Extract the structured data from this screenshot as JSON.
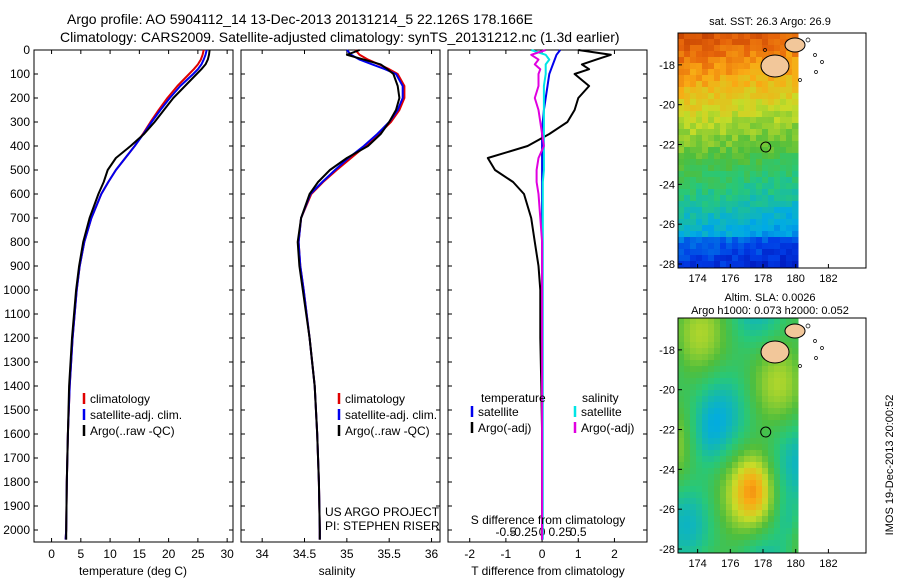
{
  "header": {
    "title_line1": "Argo profile: AO 5904112_14 13-Dec-2013 20131214_5 22.126S 178.166E",
    "title_line2": "Climatology: CARS2009. Satellite-adjusted climatology: synTS_20131212.nc (1.3d earlier)"
  },
  "colors": {
    "climatology": "#e00000",
    "satellite": "#0000ee",
    "argo": "#000000",
    "temp_diff_satellite": "#0000ee",
    "temp_diff_argo": "#000000",
    "sal_diff_satellite": "#00e5e5",
    "sal_diff_argo": "#e000e0"
  },
  "legend": {
    "climatology": "climatology",
    "satellite_adj": "satellite-adj. clim.",
    "argo_raw": "Argo(..raw -QC)"
  },
  "diff_legend": {
    "temperature": "temperature",
    "salinity": "salinity",
    "satellite": "satellite",
    "argo_adj": "Argo(-adj)"
  },
  "credits": {
    "line1": "US ARGO PROJECT",
    "line2": "PI: STEPHEN RISER"
  },
  "maps": {
    "sst_title": "sat. SST: 26.3 Argo: 26.9",
    "sla_title1": "Altim. SLA: 0.0026",
    "sla_title2": "Argo h1000: 0.073 h2000: 0.052",
    "lon_ticks": [
      "174",
      "176",
      "178",
      "180",
      "182"
    ],
    "lat_ticks": [
      "-18",
      "-20",
      "-22",
      "-24",
      "-26",
      "-28"
    ],
    "argo_marker": {
      "lon": 178.166,
      "lat": -22.126
    },
    "lon_range": [
      172.8,
      184.3
    ],
    "lat_range": [
      -28.2,
      -16.4
    ],
    "data_lon_max": 180
  },
  "stamp": "IMOS 19-Dec-2013 20:00:52",
  "chart_data": [
    {
      "type": "line",
      "name": "temperature-profile",
      "xlabel": "temperature (deg C)",
      "ylabel": "",
      "xlim": [
        -3,
        31
      ],
      "ylim": [
        2050,
        0
      ],
      "x_ticks": [
        "0",
        "5",
        "10",
        "15",
        "20",
        "25",
        "30"
      ],
      "y_ticks": [
        "0",
        "100",
        "200",
        "300",
        "400",
        "500",
        "600",
        "700",
        "800",
        "900",
        "1000",
        "1100",
        "1200",
        "1300",
        "1400",
        "1500",
        "1600",
        "1700",
        "1800",
        "1900",
        "2000"
      ],
      "depth": [
        0,
        20,
        40,
        60,
        80,
        100,
        150,
        200,
        250,
        300,
        350,
        400,
        450,
        500,
        550,
        600,
        700,
        800,
        900,
        1000,
        1200,
        1400,
        1600,
        1800,
        2000,
        2040
      ],
      "series": [
        {
          "name": "climatology",
          "values": [
            26.0,
            25.8,
            25.5,
            25.0,
            24.3,
            23.5,
            21.5,
            19.8,
            18.3,
            16.9,
            15.6,
            14.2,
            12.6,
            11.0,
            9.7,
            8.5,
            6.8,
            5.6,
            4.8,
            4.3,
            3.6,
            3.1,
            2.8,
            2.6,
            2.5,
            2.4
          ]
        },
        {
          "name": "satellite-adj. clim.",
          "values": [
            26.5,
            26.3,
            26.0,
            25.6,
            25.0,
            24.2,
            22.0,
            20.2,
            18.6,
            17.1,
            15.7,
            14.2,
            12.6,
            11.0,
            9.7,
            8.5,
            6.8,
            5.6,
            4.8,
            4.3,
            3.6,
            3.1,
            2.8,
            2.6,
            2.5,
            2.4
          ]
        },
        {
          "name": "Argo(..raw -QC)",
          "values": [
            27.0,
            26.9,
            26.7,
            26.3,
            25.6,
            24.8,
            22.8,
            20.8,
            19.2,
            17.6,
            15.8,
            13.5,
            11.0,
            9.6,
            8.9,
            8.0,
            6.5,
            5.4,
            4.7,
            4.2,
            3.5,
            3.0,
            2.8,
            2.6,
            2.5,
            2.5
          ]
        }
      ]
    },
    {
      "type": "line",
      "name": "salinity-profile",
      "xlabel": "salinity",
      "ylabel": "",
      "xlim": [
        33.75,
        36.1
      ],
      "ylim": [
        2050,
        0
      ],
      "x_ticks": [
        "34",
        "34.5",
        "35",
        "35.5",
        "36"
      ],
      "depth": [
        0,
        20,
        40,
        60,
        80,
        100,
        150,
        200,
        250,
        300,
        350,
        400,
        450,
        500,
        550,
        600,
        700,
        800,
        900,
        1000,
        1200,
        1400,
        1600,
        1800,
        2000,
        2040
      ],
      "series": [
        {
          "name": "climatology",
          "values": [
            35.1,
            35.15,
            35.25,
            35.38,
            35.5,
            35.6,
            35.68,
            35.68,
            35.62,
            35.52,
            35.38,
            35.22,
            35.05,
            34.88,
            34.72,
            34.58,
            34.46,
            34.43,
            34.45,
            34.49,
            34.56,
            34.62,
            34.65,
            34.67,
            34.68,
            34.68
          ]
        },
        {
          "name": "satellite-adj. clim.",
          "values": [
            35.0,
            35.05,
            35.15,
            35.3,
            35.45,
            35.58,
            35.66,
            35.66,
            35.6,
            35.5,
            35.36,
            35.2,
            35.02,
            34.86,
            34.71,
            34.57,
            34.46,
            34.43,
            34.45,
            34.49,
            34.56,
            34.62,
            34.65,
            34.67,
            34.68,
            34.68
          ]
        },
        {
          "name": "Argo(..raw -QC)",
          "values": [
            35.15,
            35.0,
            35.2,
            35.4,
            35.48,
            35.55,
            35.6,
            35.62,
            35.58,
            35.5,
            35.4,
            35.25,
            35.0,
            34.8,
            34.66,
            34.56,
            34.46,
            34.42,
            34.44,
            34.48,
            34.56,
            34.62,
            34.65,
            34.67,
            34.68,
            34.68
          ]
        }
      ]
    },
    {
      "type": "line",
      "name": "difference-from-climatology",
      "xlabel": "T difference from climatology",
      "xlabel_top": "S difference from climatology",
      "xlim": [
        -2.6,
        2.9
      ],
      "ylim": [
        2050,
        0
      ],
      "x_ticks": [
        "-2",
        "-1",
        "0",
        "1",
        "2"
      ],
      "x_ticks_top": [
        {
          "label": "-0.5",
          "t": -1.0
        },
        {
          "label": "-0.25",
          "t": -0.5
        },
        {
          "label": "0",
          "t": 0
        },
        {
          "label": "0.25",
          "t": 0.5
        },
        {
          "label": "0.5",
          "t": 1.0
        }
      ],
      "depth": [
        0,
        20,
        40,
        60,
        80,
        100,
        150,
        200,
        250,
        300,
        350,
        400,
        450,
        500,
        550,
        600,
        700,
        800,
        900,
        1000,
        1200,
        1400,
        1600,
        1800,
        2000,
        2040
      ],
      "series": [
        {
          "name": "temperature satellite",
          "values": [
            0.5,
            0.4,
            0.35,
            0.3,
            0.25,
            0.2,
            0.15,
            0.1,
            0.05,
            0.02,
            0.0,
            0.0,
            0.0,
            0.0,
            0.0,
            0.0,
            0.0,
            0.0,
            0.0,
            0.0,
            0.0,
            0.0,
            0.0,
            0.0,
            0.0,
            0.0
          ]
        },
        {
          "name": "temperature Argo(-adj)",
          "values": [
            1.0,
            1.9,
            1.5,
            1.1,
            1.3,
            0.9,
            1.3,
            1.0,
            0.9,
            0.7,
            0.2,
            -0.4,
            -1.5,
            -1.3,
            -0.8,
            -0.5,
            -0.3,
            -0.2,
            -0.1,
            -0.05,
            -0.05,
            -0.02,
            0.0,
            0.0,
            0.0,
            0.0
          ]
        },
        {
          "name": "salinity satellite",
          "values": [
            -0.3,
            0.1,
            0.2,
            0.1,
            0.1,
            0.1,
            0.05,
            0.05,
            0.05,
            0.05,
            0.05,
            0.05,
            0.05,
            0.05,
            0.02,
            0.02,
            0.02,
            0.02,
            0.02,
            0.02,
            0.02,
            0.02,
            0.02,
            0.02,
            0.02,
            0.02
          ]
        },
        {
          "name": "salinity Argo(-adj)",
          "values": [
            0.1,
            -0.3,
            -0.1,
            -0.2,
            -0.05,
            -0.1,
            -0.1,
            -0.2,
            -0.1,
            -0.05,
            0.0,
            0.05,
            -0.1,
            -0.15,
            -0.15,
            -0.1,
            -0.05,
            0.0,
            0.0,
            0.0,
            0.0,
            0.0,
            0.0,
            0.0,
            0.0,
            0.0
          ]
        }
      ]
    }
  ]
}
